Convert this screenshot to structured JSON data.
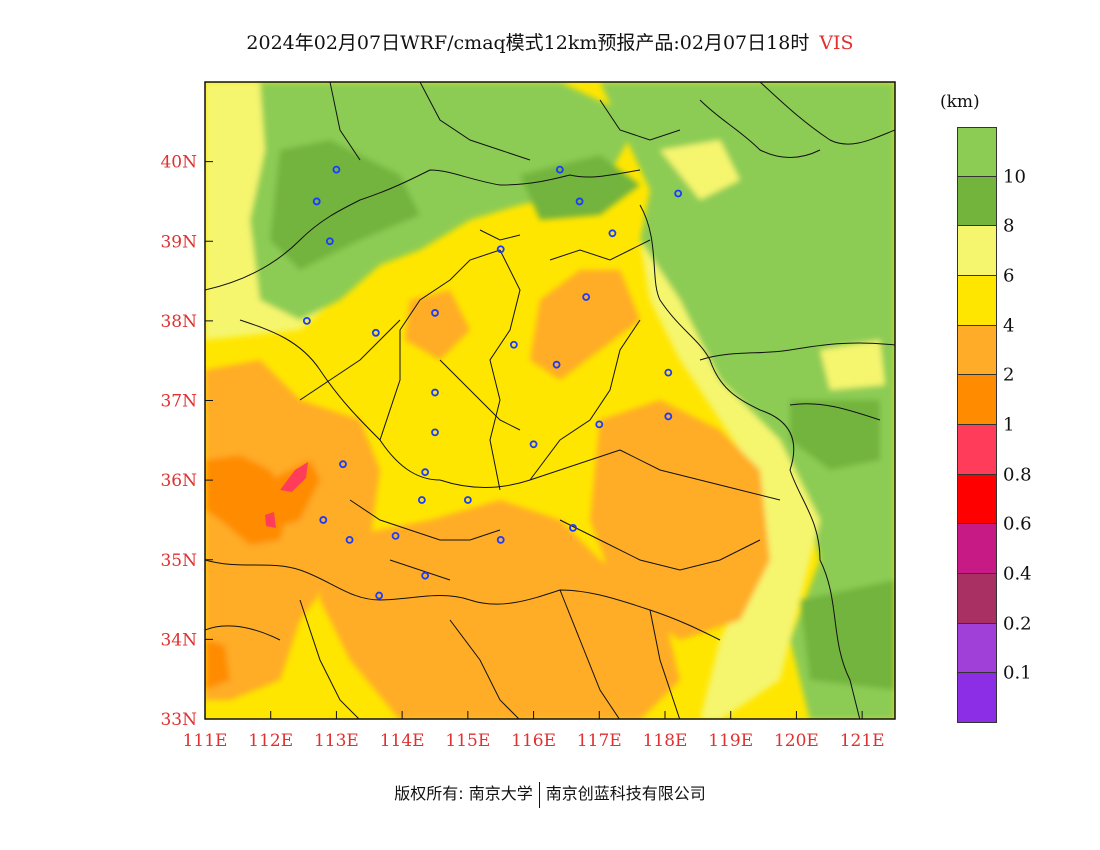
{
  "title": {
    "text": "2024年02月07日WRF/cmaq模式12km预报产品:02月07日18时",
    "variable": "VIS"
  },
  "map": {
    "lon_range": [
      111,
      121.5
    ],
    "lat_range": [
      33,
      41
    ],
    "x_ticks": [
      "111E",
      "112E",
      "113E",
      "114E",
      "115E",
      "116E",
      "117E",
      "118E",
      "119E",
      "120E",
      "121E"
    ],
    "y_ticks": [
      "33N",
      "34N",
      "35N",
      "36N",
      "37N",
      "38N",
      "39N",
      "40N"
    ],
    "tick_color": "#e03030",
    "cities": [
      [
        113.0,
        39.9
      ],
      [
        112.7,
        39.5
      ],
      [
        112.9,
        39.0
      ],
      [
        116.4,
        39.9
      ],
      [
        116.7,
        39.5
      ],
      [
        117.2,
        39.1
      ],
      [
        118.2,
        39.6
      ],
      [
        115.5,
        38.9
      ],
      [
        114.5,
        38.1
      ],
      [
        112.55,
        38.0
      ],
      [
        113.6,
        37.85
      ],
      [
        116.8,
        38.3
      ],
      [
        115.7,
        37.7
      ],
      [
        116.35,
        37.45
      ],
      [
        114.5,
        37.1
      ],
      [
        114.5,
        36.6
      ],
      [
        117.0,
        36.7
      ],
      [
        118.05,
        37.35
      ],
      [
        118.05,
        36.8
      ],
      [
        116.0,
        36.45
      ],
      [
        113.1,
        36.2
      ],
      [
        114.35,
        36.1
      ],
      [
        114.3,
        35.75
      ],
      [
        115.0,
        35.75
      ],
      [
        112.8,
        35.5
      ],
      [
        113.2,
        35.25
      ],
      [
        113.9,
        35.3
      ],
      [
        115.5,
        35.25
      ],
      [
        116.6,
        35.4
      ],
      [
        114.35,
        34.8
      ],
      [
        113.65,
        34.55
      ]
    ]
  },
  "colorbar": {
    "unit": "(km)",
    "colors": [
      "#8c2ee6",
      "#a040d8",
      "#a83062",
      "#c81a84",
      "#ff0000",
      "#ff3c5a",
      "#ff8c00",
      "#ffac28",
      "#ffe600",
      "#f5f56e",
      "#72b43c",
      "#8ccc55"
    ],
    "labels": [
      "0.1",
      "0.2",
      "0.4",
      "0.6",
      "0.8",
      "1",
      "2",
      "4",
      "6",
      "8",
      "10"
    ]
  },
  "footer": {
    "left": "版权所有: 南京大学",
    "right": "南京创蓝科技有限公司"
  }
}
